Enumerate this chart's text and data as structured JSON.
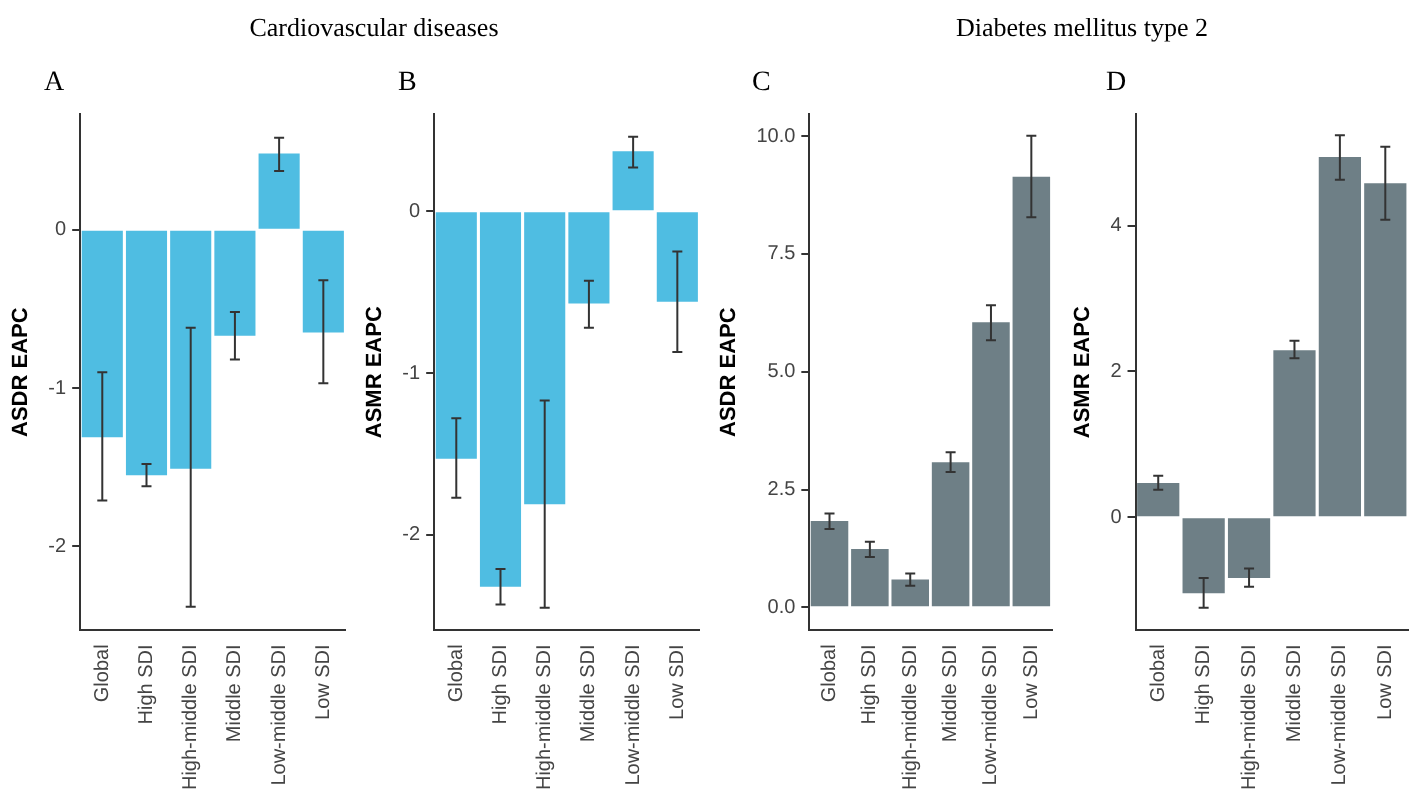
{
  "chart_data": [
    {
      "type": "bar",
      "title": "Cardiovascular diseases",
      "subtitle": "A",
      "ylabel": "ASDR EAPC",
      "categories": [
        "Global",
        "High SDI",
        "High-middle SDI",
        "Middle SDI",
        "Low-middle SDI",
        "Low SDI"
      ],
      "series": [
        {
          "color": "#4fbde2",
          "values": [
            -1.31,
            -1.55,
            -1.51,
            -0.67,
            0.48,
            -0.65
          ],
          "errors": [
            [
              -1.71,
              -0.9
            ],
            [
              -1.62,
              -1.48
            ],
            [
              -2.38,
              -0.62
            ],
            [
              -0.82,
              -0.52
            ],
            [
              0.37,
              0.58
            ],
            [
              -0.97,
              -0.32
            ]
          ]
        }
      ],
      "ylim": [
        -2.53,
        0.73
      ],
      "yticks": [
        -2,
        -1,
        0
      ],
      "grid": false,
      "legend": false
    },
    {
      "type": "bar",
      "subtitle": "B",
      "ylabel": "ASMR EAPC",
      "categories": [
        "Global",
        "High SDI",
        "High-middle SDI",
        "Middle SDI",
        "Low-middle SDI",
        "Low SDI"
      ],
      "series": [
        {
          "color": "#4fbde2",
          "values": [
            -1.53,
            -2.32,
            -1.81,
            -0.57,
            0.37,
            -0.56
          ],
          "errors": [
            [
              -1.77,
              -1.28
            ],
            [
              -2.43,
              -2.21
            ],
            [
              -2.45,
              -1.17
            ],
            [
              -0.72,
              -0.43
            ],
            [
              0.27,
              0.46
            ],
            [
              -0.87,
              -0.25
            ]
          ]
        }
      ],
      "ylim": [
        -2.59,
        0.6
      ],
      "yticks": [
        -2,
        -1,
        0
      ],
      "grid": false,
      "legend": false
    },
    {
      "type": "bar",
      "title": "Diabetes mellitus type 2",
      "subtitle": "C",
      "ylabel": "ASDR EAPC",
      "categories": [
        "Global",
        "High SDI",
        "High-middle SDI",
        "Middle SDI",
        "Low-middle SDI",
        "Low SDI"
      ],
      "series": [
        {
          "color": "#6e7f86",
          "values": [
            1.83,
            1.24,
            0.59,
            3.08,
            6.05,
            9.14
          ],
          "errors": [
            [
              1.66,
              1.99
            ],
            [
              1.07,
              1.39
            ],
            [
              0.46,
              0.72
            ],
            [
              2.87,
              3.29
            ],
            [
              5.67,
              6.41
            ],
            [
              8.28,
              10.01
            ]
          ]
        }
      ],
      "ylim": [
        -0.49,
        10.47
      ],
      "yticks": [
        {
          "value": 0,
          "label": "0.0"
        },
        2.5,
        {
          "value": 5,
          "label": "5.0"
        },
        7.5,
        {
          "value": 10,
          "label": "10.0"
        }
      ],
      "grid": false,
      "legend": false
    },
    {
      "type": "bar",
      "subtitle": "D",
      "ylabel": "ASMR EAPC",
      "categories": [
        "Global",
        "High SDI",
        "High-middle SDI",
        "Middle SDI",
        "Low-middle SDI",
        "Low SDI"
      ],
      "series": [
        {
          "color": "#6e7f86",
          "values": [
            0.47,
            -1.04,
            -0.83,
            2.29,
            4.94,
            4.58
          ],
          "errors": [
            [
              0.38,
              0.57
            ],
            [
              -1.24,
              -0.83
            ],
            [
              -0.95,
              -0.7
            ],
            [
              2.18,
              2.42
            ],
            [
              4.63,
              5.24
            ],
            [
              4.08,
              5.08
            ]
          ]
        }
      ],
      "ylim": [
        -1.55,
        5.53
      ],
      "yticks": [
        0,
        2,
        4
      ],
      "grid": false,
      "legend": false
    }
  ]
}
